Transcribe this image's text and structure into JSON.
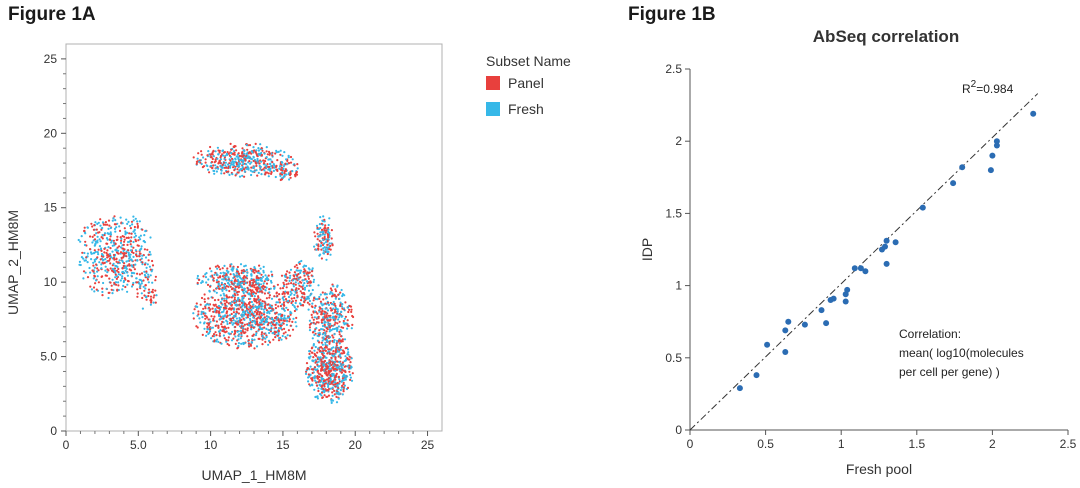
{
  "figure_a": {
    "label": "Figure 1A"
  },
  "figure_b": {
    "label": "Figure 1B"
  },
  "colors": {
    "panel": "#e8403d",
    "fresh": "#36b8e8",
    "scatter_point": "#2b6cb3",
    "axis": "#555555"
  },
  "chart_data": [
    {
      "type": "scatter",
      "title": "",
      "xlabel": "UMAP_1_HM8M",
      "ylabel": "UMAP_2_HM8M",
      "xlim": [
        0,
        26
      ],
      "ylim": [
        0,
        26
      ],
      "xticks": [
        0,
        5,
        10,
        15,
        20,
        25
      ],
      "xtick_labels": [
        "0",
        "5.0",
        "10",
        "15",
        "20",
        "25"
      ],
      "yticks": [
        0,
        5,
        10,
        15,
        20,
        25
      ],
      "ytick_labels": [
        "0",
        "5.0",
        "10",
        "15",
        "20",
        "25"
      ],
      "legend_title": "Subset Name",
      "legend_position": "right",
      "series": [
        {
          "name": "Panel",
          "color": "#e8403d"
        },
        {
          "name": "Fresh",
          "color": "#36b8e8"
        }
      ],
      "clusters": [
        {
          "cx": 3.4,
          "cy": 11.8,
          "rx": 2.6,
          "ry": 2.8,
          "count": 520
        },
        {
          "cx": 5.6,
          "cy": 9.6,
          "rx": 0.8,
          "ry": 1.4,
          "count": 60
        },
        {
          "cx": 12.2,
          "cy": 18.2,
          "rx": 3.3,
          "ry": 1.1,
          "count": 420
        },
        {
          "cx": 15.0,
          "cy": 17.6,
          "rx": 1.2,
          "ry": 0.8,
          "count": 80
        },
        {
          "cx": 12.5,
          "cy": 7.8,
          "rx": 3.6,
          "ry": 2.2,
          "count": 900
        },
        {
          "cx": 12.0,
          "cy": 10.2,
          "rx": 3.0,
          "ry": 1.0,
          "count": 300
        },
        {
          "cx": 16.2,
          "cy": 9.8,
          "rx": 1.2,
          "ry": 1.6,
          "count": 180
        },
        {
          "cx": 18.3,
          "cy": 7.6,
          "rx": 1.5,
          "ry": 2.2,
          "count": 320
        },
        {
          "cx": 18.2,
          "cy": 4.1,
          "rx": 1.6,
          "ry": 2.2,
          "count": 560
        },
        {
          "cx": 17.8,
          "cy": 13.0,
          "rx": 0.7,
          "ry": 1.5,
          "count": 120
        }
      ]
    },
    {
      "type": "scatter",
      "title": "AbSeq correlation",
      "xlabel": "Fresh pool",
      "ylabel": "IDP",
      "xlim": [
        0,
        2.5
      ],
      "ylim": [
        0,
        2.5
      ],
      "xticks": [
        0,
        0.5,
        1,
        1.5,
        2,
        2.5
      ],
      "xtick_labels": [
        "0",
        "0.5",
        "1",
        "1.5",
        "2",
        "2.5"
      ],
      "yticks": [
        0,
        0.5,
        1,
        1.5,
        2,
        2.5
      ],
      "ytick_labels": [
        "0",
        "0.5",
        "1",
        "1.5",
        "2",
        "2.5"
      ],
      "r2_label": "R",
      "r2_sup": "2",
      "r2_value": "=0.984",
      "annotation": {
        "line1": "Correlation:",
        "line2": "mean( log10(molecules",
        "line3": "per cell per gene) )"
      },
      "x": [
        0.33,
        0.44,
        0.51,
        0.63,
        0.63,
        0.65,
        0.76,
        0.87,
        0.9,
        0.93,
        0.95,
        1.03,
        1.03,
        1.04,
        1.09,
        1.13,
        1.16,
        1.27,
        1.29,
        1.3,
        1.3,
        1.36,
        1.54,
        1.74,
        1.8,
        1.99,
        2.0,
        2.03,
        2.03,
        2.27
      ],
      "y": [
        0.29,
        0.38,
        0.59,
        0.54,
        0.69,
        0.75,
        0.73,
        0.83,
        0.74,
        0.9,
        0.91,
        0.89,
        0.94,
        0.97,
        1.12,
        1.12,
        1.1,
        1.25,
        1.27,
        1.15,
        1.31,
        1.3,
        1.54,
        1.71,
        1.82,
        1.8,
        1.9,
        1.97,
        2.0,
        2.19
      ],
      "fit_line": {
        "x": [
          0,
          2.3
        ],
        "y": [
          0,
          2.33
        ]
      }
    }
  ]
}
